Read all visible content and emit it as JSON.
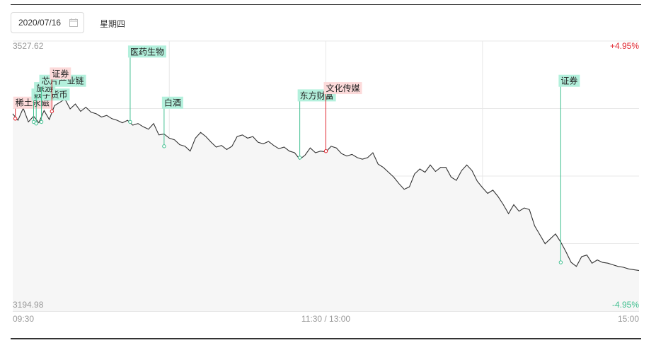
{
  "header": {
    "date_value": "2020/07/16",
    "weekday": "星期四"
  },
  "icons": {
    "date_picker": "calendar-icon"
  },
  "colors": {
    "up": "#e0262f",
    "down": "#3fbf8f",
    "line": "#333333",
    "up_tag_bg": "#fcdada",
    "down_tag_bg": "#b3f0dc",
    "grid": "#e8e8e8"
  },
  "chart_data": {
    "type": "line",
    "y_max_label": "3527.62",
    "y_min_label": "3194.98",
    "ylim": [
      3194.98,
      3527.62
    ],
    "right_top_label": "+4.95%",
    "right_bottom_label": "-4.95%",
    "x_tick_labels": [
      "09:30",
      "11:30 / 13:00",
      "15:00"
    ],
    "xlim": [
      0,
      240
    ],
    "grid": true,
    "series": [
      {
        "x": [
          0,
          2,
          4,
          6,
          8,
          10,
          12,
          14,
          16,
          18,
          20,
          22,
          24,
          26,
          28,
          30,
          32,
          34,
          36,
          38,
          40,
          42,
          44,
          46,
          48,
          50,
          52,
          54,
          56,
          58,
          60,
          62,
          64,
          66,
          68,
          70,
          72,
          74,
          76,
          78,
          80,
          82,
          84,
          86,
          88,
          90,
          92,
          94,
          96,
          98,
          100,
          102,
          104,
          106,
          108,
          110,
          112,
          114,
          116,
          118,
          120,
          122,
          124,
          126,
          128,
          130,
          132,
          134,
          136,
          138,
          140,
          142,
          144,
          146,
          148,
          150,
          152,
          154,
          156,
          158,
          160,
          162,
          164,
          166,
          168,
          170,
          172,
          174,
          176,
          178,
          180,
          182,
          184,
          186,
          188,
          190,
          192,
          194,
          196,
          198,
          200,
          202,
          204,
          206,
          208,
          210,
          212,
          214,
          216,
          218,
          220,
          222,
          224,
          226,
          228,
          230,
          232,
          234,
          236,
          238,
          240
        ],
        "values": [
          3438,
          3430,
          3445,
          3428,
          3435,
          3427,
          3442,
          3431,
          3448,
          3452,
          3456,
          3444,
          3450,
          3441,
          3446,
          3440,
          3438,
          3434,
          3436,
          3432,
          3430,
          3427,
          3430,
          3424,
          3426,
          3422,
          3419,
          3426,
          3412,
          3413,
          3408,
          3406,
          3400,
          3398,
          3392,
          3408,
          3415,
          3410,
          3403,
          3397,
          3399,
          3394,
          3398,
          3410,
          3412,
          3408,
          3410,
          3403,
          3401,
          3404,
          3399,
          3395,
          3397,
          3392,
          3390,
          3382,
          3387,
          3396,
          3390,
          3392,
          3391,
          3398,
          3396,
          3389,
          3386,
          3388,
          3384,
          3382,
          3384,
          3390,
          3376,
          3372,
          3366,
          3360,
          3352,
          3345,
          3348,
          3364,
          3370,
          3366,
          3375,
          3367,
          3372,
          3372,
          3360,
          3356,
          3368,
          3375,
          3368,
          3355,
          3347,
          3340,
          3344,
          3336,
          3326,
          3315,
          3326,
          3318,
          3322,
          3320,
          3300,
          3289,
          3278,
          3284,
          3290,
          3280,
          3268,
          3255,
          3250,
          3262,
          3264,
          3254,
          3258,
          3255,
          3254,
          3252,
          3250,
          3249,
          3247,
          3246,
          3245
        ],
        "color": "#333333"
      }
    ],
    "annotations": [
      {
        "label": "稀土永磁",
        "x": 1,
        "y": 3432,
        "dir": "up",
        "tag_y": 3446
      },
      {
        "label": "数字货币",
        "x": 8,
        "y": 3428,
        "dir": "down",
        "tag_y": 3456
      },
      {
        "label": "旅游",
        "x": 9,
        "y": 3426,
        "dir": "down",
        "tag_y": 3464
      },
      {
        "label": "芯片产业链",
        "x": 11,
        "y": 3428,
        "dir": "down",
        "tag_y": 3473
      },
      {
        "label": "证券",
        "x": 15,
        "y": 3441,
        "dir": "up",
        "tag_y": 3482
      },
      {
        "label": "医药生物",
        "x": 45,
        "y": 3428,
        "dir": "down",
        "tag_y": 3509
      },
      {
        "label": "白酒",
        "x": 58,
        "y": 3398,
        "dir": "down",
        "tag_y": 3446
      },
      {
        "label": "东方财富",
        "x": 110,
        "y": 3384,
        "dir": "down",
        "tag_y": 3455
      },
      {
        "label": "文化传媒",
        "x": 120,
        "y": 3392,
        "dir": "up",
        "tag_y": 3464
      },
      {
        "label": "证券",
        "x": 210,
        "y": 3255,
        "dir": "down",
        "tag_y": 3473
      }
    ]
  }
}
